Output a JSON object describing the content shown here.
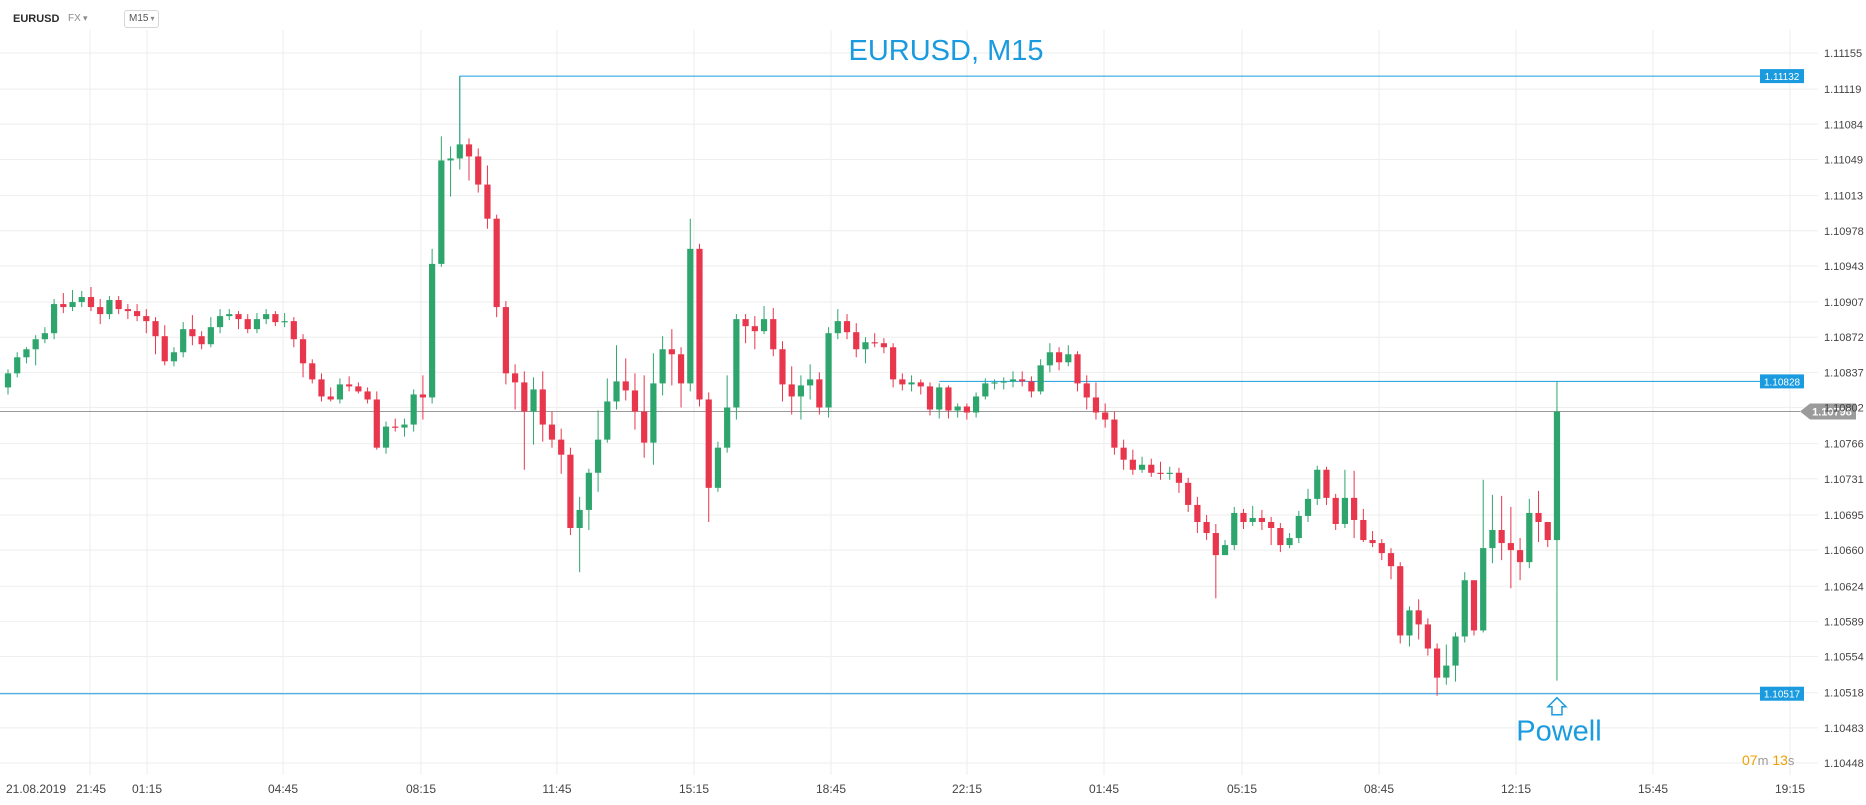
{
  "toolbar": {
    "symbol": "EURUSD",
    "market": "FX",
    "timeframe": "M15"
  },
  "countdown": {
    "minutes": "07",
    "minutes_unit": "m",
    "seconds": "13",
    "seconds_unit": "s"
  },
  "colors": {
    "up": "#2fa56e",
    "down": "#e8364c",
    "accent": "#1a9be0",
    "grid": "#eeeeee",
    "current_line": "#9a9a9a"
  },
  "chart_data": {
    "type": "candlestick",
    "title": "EURUSD, M15",
    "annotation": "Powell",
    "ylim": [
      1.10448,
      1.11155
    ],
    "y_ticks": [
      "1.11155",
      "1.11119",
      "1.11084",
      "1.11049",
      "1.11013",
      "1.10978",
      "1.10943",
      "1.10907",
      "1.10872",
      "1.10837",
      "1.10802",
      "1.10766",
      "1.10731",
      "1.10695",
      "1.10660",
      "1.10624",
      "1.10589",
      "1.10554",
      "1.10518",
      "1.10483",
      "1.10448"
    ],
    "x_ticks": [
      "21.08.2019",
      "21:45",
      "01:15",
      "04:45",
      "08:15",
      "11:45",
      "15:15",
      "18:45",
      "22:15",
      "01:45",
      "05:15",
      "08:45",
      "12:15",
      "15:45",
      "19:15"
    ],
    "price_lines": [
      {
        "label": "1.11132",
        "value": 1.11132
      },
      {
        "label": "1.10828",
        "value": 1.10828
      },
      {
        "label": "1.10517",
        "value": 1.10517
      }
    ],
    "current_price": {
      "label": "1.10798",
      "value": 1.10798
    },
    "candles": [
      [
        1.10822,
        1.10836,
        1.10822,
        1.1084,
        1.10815
      ],
      [
        1.10836,
        1.10852,
        1.10836,
        1.10857,
        1.10832
      ],
      [
        1.10852,
        1.1086,
        1.10852,
        1.10862,
        1.10846
      ],
      [
        1.1086,
        1.1087,
        1.1086,
        1.10874,
        1.10844
      ],
      [
        1.1087,
        1.10876,
        1.1087,
        1.10882,
        1.10866
      ],
      [
        1.10876,
        1.10905,
        1.10876,
        1.1091,
        1.1087
      ],
      [
        1.10905,
        1.10902,
        1.10902,
        1.10916,
        1.10896
      ],
      [
        1.10902,
        1.10907,
        1.10902,
        1.10919,
        1.10898
      ],
      [
        1.10907,
        1.10912,
        1.10907,
        1.10918,
        1.10902
      ],
      [
        1.10912,
        1.10902,
        1.10902,
        1.10922,
        1.10898
      ],
      [
        1.10902,
        1.10895,
        1.10895,
        1.1091,
        1.10885
      ],
      [
        1.10895,
        1.10909,
        1.10895,
        1.10913,
        1.1089
      ],
      [
        1.10909,
        1.109,
        1.109,
        1.10913,
        1.10895
      ],
      [
        1.109,
        1.10898,
        1.10898,
        1.10905,
        1.1089
      ],
      [
        1.10898,
        1.10893,
        1.10893,
        1.10905,
        1.10888
      ],
      [
        1.10893,
        1.10888,
        1.10888,
        1.109,
        1.10876
      ],
      [
        1.10888,
        1.10873,
        1.10873,
        1.10892,
        1.10855
      ],
      [
        1.10873,
        1.10848,
        1.10848,
        1.10884,
        1.10844
      ],
      [
        1.10848,
        1.10857,
        1.10848,
        1.10862,
        1.10843
      ],
      [
        1.10857,
        1.1088,
        1.10857,
        1.10887,
        1.10852
      ],
      [
        1.1088,
        1.10873,
        1.10873,
        1.10894,
        1.10864
      ],
      [
        1.10873,
        1.10865,
        1.10865,
        1.10878,
        1.1086
      ],
      [
        1.10865,
        1.10882,
        1.10865,
        1.10892,
        1.10862
      ],
      [
        1.10882,
        1.10893,
        1.10882,
        1.109,
        1.10876
      ],
      [
        1.10893,
        1.10895,
        1.10893,
        1.109,
        1.10889
      ],
      [
        1.10895,
        1.1089,
        1.1089,
        1.10898,
        1.1088
      ],
      [
        1.1089,
        1.1088,
        1.1088,
        1.10895,
        1.10876
      ],
      [
        1.1088,
        1.1089,
        1.1088,
        1.10896,
        1.10876
      ],
      [
        1.1089,
        1.10895,
        1.1089,
        1.109,
        1.10885
      ],
      [
        1.10895,
        1.10887,
        1.10887,
        1.10898,
        1.10883
      ],
      [
        1.10887,
        1.10888,
        1.10887,
        1.10896,
        1.10882
      ],
      [
        1.10888,
        1.1087,
        1.1087,
        1.10892,
        1.10862
      ],
      [
        1.1087,
        1.10846,
        1.10846,
        1.10875,
        1.10832
      ],
      [
        1.10846,
        1.1083,
        1.1083,
        1.1085,
        1.10826
      ],
      [
        1.1083,
        1.10813,
        1.10813,
        1.10836,
        1.10808
      ],
      [
        1.10813,
        1.1081,
        1.1081,
        1.10822,
        1.10808
      ],
      [
        1.1081,
        1.10825,
        1.1081,
        1.10831,
        1.10806
      ],
      [
        1.10825,
        1.10823,
        1.10823,
        1.10833,
        1.10818
      ],
      [
        1.10823,
        1.10818,
        1.10818,
        1.10827,
        1.10816
      ],
      [
        1.10818,
        1.1081,
        1.1081,
        1.10822,
        1.10806
      ],
      [
        1.1081,
        1.10762,
        1.10762,
        1.10818,
        1.1076
      ],
      [
        1.10762,
        1.10783,
        1.10762,
        1.10788,
        1.10756
      ],
      [
        1.10783,
        1.10782,
        1.10782,
        1.10791,
        1.10778
      ],
      [
        1.10782,
        1.10785,
        1.10782,
        1.10791,
        1.10773
      ],
      [
        1.10785,
        1.10815,
        1.10785,
        1.1082,
        1.10778
      ],
      [
        1.10815,
        1.10812,
        1.10812,
        1.10834,
        1.1079
      ],
      [
        1.10812,
        1.10945,
        1.10812,
        1.1096,
        1.10806
      ],
      [
        1.10945,
        1.11048,
        1.10945,
        1.11072,
        1.10942
      ],
      [
        1.11048,
        1.1105,
        1.11048,
        1.11062,
        1.11012
      ],
      [
        1.1105,
        1.11064,
        1.1105,
        1.11132,
        1.11039
      ],
      [
        1.11064,
        1.11052,
        1.11052,
        1.1107,
        1.11028
      ],
      [
        1.11052,
        1.11024,
        1.11024,
        1.1106,
        1.11016
      ],
      [
        1.11024,
        1.1099,
        1.1099,
        1.11043,
        1.1098
      ],
      [
        1.1099,
        1.10902,
        1.10902,
        1.10994,
        1.10892
      ],
      [
        1.10902,
        1.10836,
        1.10836,
        1.10908,
        1.10825
      ],
      [
        1.10836,
        1.10827,
        1.10827,
        1.10845,
        1.108
      ],
      [
        1.10827,
        1.10798,
        1.10798,
        1.10838,
        1.1074
      ],
      [
        1.10798,
        1.1082,
        1.10798,
        1.10832,
        1.10765
      ],
      [
        1.1082,
        1.10785,
        1.10785,
        1.10838,
        1.10768
      ],
      [
        1.10785,
        1.1077,
        1.1077,
        1.10798,
        1.10762
      ],
      [
        1.1077,
        1.10755,
        1.10755,
        1.10781,
        1.10736
      ],
      [
        1.10755,
        1.10682,
        1.10682,
        1.10762,
        1.10675
      ],
      [
        1.10682,
        1.107,
        1.10682,
        1.10713,
        1.10638
      ],
      [
        1.107,
        1.10737,
        1.107,
        1.10741,
        1.1068
      ],
      [
        1.10737,
        1.1077,
        1.10737,
        1.10799,
        1.10718
      ],
      [
        1.1077,
        1.10808,
        1.1077,
        1.10831,
        1.10767
      ],
      [
        1.10808,
        1.10828,
        1.10808,
        1.10864,
        1.108
      ],
      [
        1.10828,
        1.10819,
        1.10819,
        1.10851,
        1.10809
      ],
      [
        1.10819,
        1.10798,
        1.10798,
        1.10836,
        1.1078
      ],
      [
        1.10798,
        1.10767,
        1.10767,
        1.10834,
        1.10752
      ],
      [
        1.10767,
        1.10826,
        1.10767,
        1.10856,
        1.10745
      ],
      [
        1.10826,
        1.1086,
        1.10826,
        1.10873,
        1.10814
      ],
      [
        1.1086,
        1.10855,
        1.10855,
        1.1088,
        1.10824
      ],
      [
        1.10855,
        1.10826,
        1.10826,
        1.10862,
        1.10802
      ],
      [
        1.10826,
        1.1096,
        1.10826,
        1.1099,
        1.10818
      ],
      [
        1.1096,
        1.1081,
        1.1081,
        1.10965,
        1.10803
      ],
      [
        1.1081,
        1.10722,
        1.10722,
        1.10817,
        1.10688
      ],
      [
        1.10722,
        1.10762,
        1.10722,
        1.10768,
        1.10718
      ],
      [
        1.10762,
        1.10802,
        1.10762,
        1.10834,
        1.10757
      ],
      [
        1.10802,
        1.1089,
        1.10802,
        1.10895,
        1.1079
      ],
      [
        1.1089,
        1.10883,
        1.10883,
        1.10895,
        1.10866
      ],
      [
        1.10883,
        1.10878,
        1.10878,
        1.10893,
        1.1086
      ],
      [
        1.10878,
        1.1089,
        1.10878,
        1.10903,
        1.10875
      ],
      [
        1.1089,
        1.1086,
        1.1086,
        1.10901,
        1.10853
      ],
      [
        1.1086,
        1.10825,
        1.10825,
        1.10868,
        1.10808
      ],
      [
        1.10825,
        1.10813,
        1.10813,
        1.10843,
        1.10795
      ],
      [
        1.10813,
        1.10824,
        1.10813,
        1.10834,
        1.1079
      ],
      [
        1.10824,
        1.1083,
        1.10824,
        1.10845,
        1.1081
      ],
      [
        1.1083,
        1.10802,
        1.10802,
        1.10837,
        1.10795
      ],
      [
        1.10802,
        1.10876,
        1.10802,
        1.10882,
        1.10792
      ],
      [
        1.10876,
        1.10888,
        1.10876,
        1.109,
        1.1087
      ],
      [
        1.10888,
        1.10877,
        1.10877,
        1.10895,
        1.1087
      ],
      [
        1.10877,
        1.1086,
        1.1086,
        1.10886,
        1.10852
      ],
      [
        1.1086,
        1.10867,
        1.1086,
        1.10872,
        1.10846
      ],
      [
        1.10867,
        1.10866,
        1.10866,
        1.10876,
        1.10862
      ],
      [
        1.10866,
        1.10862,
        1.10862,
        1.10871,
        1.10856
      ],
      [
        1.10862,
        1.1083,
        1.1083,
        1.10866,
        1.10822
      ],
      [
        1.1083,
        1.10825,
        1.10825,
        1.10836,
        1.10819
      ],
      [
        1.10825,
        1.10827,
        1.10825,
        1.10834,
        1.10818
      ],
      [
        1.10827,
        1.10823,
        1.10823,
        1.1083,
        1.10815
      ],
      [
        1.10823,
        1.108,
        1.108,
        1.10827,
        1.10794
      ],
      [
        1.108,
        1.10822,
        1.108,
        1.10826,
        1.10791
      ],
      [
        1.10822,
        1.10799,
        1.10799,
        1.10824,
        1.10791
      ],
      [
        1.10799,
        1.10803,
        1.10799,
        1.10806,
        1.10792
      ],
      [
        1.10803,
        1.10797,
        1.10797,
        1.10806,
        1.1079
      ],
      [
        1.10797,
        1.10813,
        1.10797,
        1.10817,
        1.10792
      ],
      [
        1.10813,
        1.10826,
        1.10813,
        1.10831,
        1.1081
      ],
      [
        1.10826,
        1.10827,
        1.10826,
        1.1083,
        1.1082
      ],
      [
        1.10827,
        1.10828,
        1.10827,
        1.10832,
        1.1082
      ],
      [
        1.10828,
        1.1083,
        1.10828,
        1.10838,
        1.10822
      ],
      [
        1.1083,
        1.10828,
        1.10828,
        1.10838,
        1.10823
      ],
      [
        1.10828,
        1.10818,
        1.10818,
        1.10833,
        1.10812
      ],
      [
        1.10818,
        1.10844,
        1.10818,
        1.1085,
        1.10815
      ],
      [
        1.10844,
        1.10857,
        1.10844,
        1.10866,
        1.10837
      ],
      [
        1.10857,
        1.10847,
        1.10847,
        1.10862,
        1.10839
      ],
      [
        1.10847,
        1.10855,
        1.10847,
        1.10864,
        1.10843
      ],
      [
        1.10855,
        1.10826,
        1.10826,
        1.10858,
        1.10818
      ],
      [
        1.10826,
        1.10812,
        1.10812,
        1.10834,
        1.108
      ],
      [
        1.10812,
        1.10797,
        1.10797,
        1.10827,
        1.1079
      ],
      [
        1.10797,
        1.1079,
        1.1079,
        1.10806,
        1.10782
      ],
      [
        1.1079,
        1.10762,
        1.10762,
        1.10798,
        1.10755
      ],
      [
        1.10762,
        1.1075,
        1.1075,
        1.1077,
        1.1074
      ],
      [
        1.1075,
        1.1074,
        1.1074,
        1.1076,
        1.10735
      ],
      [
        1.1074,
        1.10745,
        1.1074,
        1.10753,
        1.10737
      ],
      [
        1.10745,
        1.10737,
        1.10737,
        1.10751,
        1.10733
      ],
      [
        1.10737,
        1.10736,
        1.10736,
        1.10748,
        1.1073
      ],
      [
        1.10736,
        1.10737,
        1.10736,
        1.10743,
        1.1073
      ],
      [
        1.10737,
        1.10727,
        1.10727,
        1.10742,
        1.10717
      ],
      [
        1.10727,
        1.10705,
        1.10705,
        1.10732,
        1.10698
      ],
      [
        1.10705,
        1.10688,
        1.10688,
        1.10713,
        1.10677
      ],
      [
        1.10688,
        1.10677,
        1.10677,
        1.10695,
        1.1067
      ],
      [
        1.10677,
        1.10655,
        1.10655,
        1.10686,
        1.10612
      ],
      [
        1.10655,
        1.10665,
        1.10655,
        1.1067,
        1.10658
      ],
      [
        1.10665,
        1.10697,
        1.10665,
        1.10703,
        1.1066
      ],
      [
        1.10697,
        1.10688,
        1.10688,
        1.10701,
        1.10681
      ],
      [
        1.10688,
        1.10692,
        1.10688,
        1.10704,
        1.10684
      ],
      [
        1.10692,
        1.10688,
        1.10688,
        1.107,
        1.1068
      ],
      [
        1.10688,
        1.10682,
        1.10682,
        1.10693,
        1.10665
      ],
      [
        1.10682,
        1.10665,
        1.10665,
        1.10687,
        1.10658
      ],
      [
        1.10665,
        1.10672,
        1.10665,
        1.10677,
        1.10662
      ],
      [
        1.10672,
        1.10694,
        1.10672,
        1.10699,
        1.10667
      ],
      [
        1.10694,
        1.10711,
        1.10694,
        1.10721,
        1.10688
      ],
      [
        1.10711,
        1.1074,
        1.10711,
        1.10744,
        1.10705
      ],
      [
        1.1074,
        1.10712,
        1.10712,
        1.10743,
        1.10705
      ],
      [
        1.10712,
        1.10686,
        1.10686,
        1.10716,
        1.1068
      ],
      [
        1.10686,
        1.10712,
        1.10686,
        1.1074,
        1.10682
      ],
      [
        1.10712,
        1.1069,
        1.1069,
        1.10739,
        1.10672
      ],
      [
        1.1069,
        1.1067,
        1.1067,
        1.10701,
        1.10668
      ],
      [
        1.1067,
        1.10667,
        1.10667,
        1.10679,
        1.10663
      ],
      [
        1.10667,
        1.10657,
        1.10657,
        1.10671,
        1.1065
      ],
      [
        1.10657,
        1.10644,
        1.10644,
        1.10662,
        1.10631
      ],
      [
        1.10644,
        1.10575,
        1.10575,
        1.10648,
        1.10567
      ],
      [
        1.10575,
        1.106,
        1.10575,
        1.10604,
        1.10564
      ],
      [
        1.106,
        1.10586,
        1.10586,
        1.10611,
        1.10571
      ],
      [
        1.10586,
        1.10562,
        1.10562,
        1.10592,
        1.10555
      ],
      [
        1.10562,
        1.10533,
        1.10533,
        1.10567,
        1.10515
      ],
      [
        1.10533,
        1.10545,
        1.10533,
        1.10566,
        1.10526
      ],
      [
        1.10545,
        1.10574,
        1.10545,
        1.10578,
        1.10529
      ],
      [
        1.10574,
        1.1063,
        1.10574,
        1.10638,
        1.10568
      ],
      [
        1.1063,
        1.1058,
        1.1058,
        1.1063,
        1.10575
      ],
      [
        1.1058,
        1.10662,
        1.1058,
        1.1073,
        1.10578
      ],
      [
        1.10662,
        1.1068,
        1.10662,
        1.10715,
        1.10647
      ],
      [
        1.1068,
        1.10667,
        1.10667,
        1.10714,
        1.1065
      ],
      [
        1.10667,
        1.1066,
        1.1066,
        1.10703,
        1.10622
      ],
      [
        1.1066,
        1.10648,
        1.10648,
        1.10672,
        1.1063
      ],
      [
        1.10648,
        1.10697,
        1.10648,
        1.10711,
        1.10642
      ],
      [
        1.10697,
        1.10688,
        1.10688,
        1.10719,
        1.10668
      ],
      [
        1.10688,
        1.1067,
        1.1067,
        1.10687,
        1.10663
      ],
      [
        1.1067,
        1.10798,
        1.1067,
        1.10828,
        1.1053
      ]
    ]
  }
}
